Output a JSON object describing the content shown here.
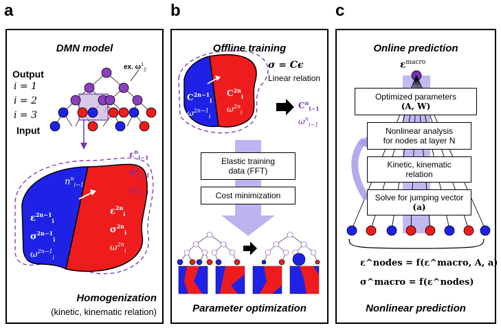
{
  "panels": {
    "a": {
      "letter": "a",
      "title": "DMN model",
      "output_label": "Output",
      "input_label": "Input",
      "layers": [
        "i = 1",
        "i = 2",
        "i = 3"
      ],
      "example": "ex. ω",
      "example_sup": "1",
      "example_sub": "2",
      "parent_vars": [
        "ε",
        "σ",
        "ω"
      ],
      "parent_sub": "i−1",
      "parent_sup": "n",
      "arrow_label": "n",
      "child_blue": [
        "ε",
        "σ",
        "ω"
      ],
      "child_blue_sup": "2n−1",
      "child_red": [
        "ε",
        "σ",
        "ω"
      ],
      "child_red_sup": "2n",
      "child_sub": "i",
      "footer_title": "Homogenization",
      "footer_sub": "(kinetic, kinematic relation)"
    },
    "b": {
      "letter": "b",
      "title": "Offline training",
      "equation": "σ = Cϵ",
      "linear_relation": "Linear relation",
      "blue_vars": [
        "C",
        "ω"
      ],
      "blue_sup": "2n−1",
      "red_vars": [
        "C",
        "ω"
      ],
      "red_sup": "2n",
      "sub_i": "i",
      "result_vars": [
        "C",
        "ω"
      ],
      "result_sup": "n",
      "result_sub": "i−1",
      "box1": [
        "Elastic training",
        "data (FFT)"
      ],
      "box2": "Cost minimization",
      "footer_title": "Parameter optimization"
    },
    "c": {
      "letter": "c",
      "title": "Online prediction",
      "eps_macro": "ε",
      "eps_macro_sup": "macro",
      "box1": [
        "Optimized parameters",
        "(A, W)"
      ],
      "box2": [
        "Nonlinear analysis",
        "for nodes at layer N"
      ],
      "box3": [
        "Kinetic, kinematic",
        "relation"
      ],
      "box4": [
        "Solve for jumping vector",
        "(a)"
      ],
      "eq1": "ε^nodes = f(ε^macro, A, a)",
      "eq2": "σ^macro = f(ε^nodes)",
      "footer_title": "Nonlinear prediction"
    }
  },
  "colors": {
    "blue": "#1f22e6",
    "red": "#ee1c1c",
    "purple": "#7a2fb0",
    "light_purple": "#a79bea",
    "network_purple": "#8a3fbd"
  }
}
